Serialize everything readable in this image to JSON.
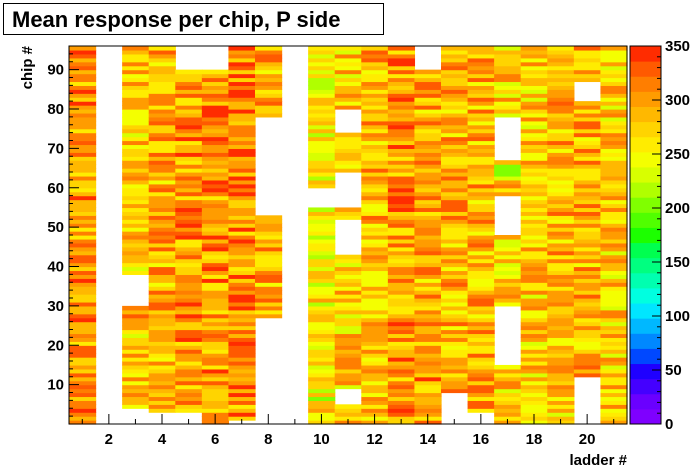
{
  "chart_data": {
    "type": "heatmap",
    "title": "Mean response per chip, P side",
    "xlabel": "ladder #",
    "ylabel": "chip #",
    "x_range": [
      1,
      21
    ],
    "y_range": [
      0,
      96
    ],
    "x_ticks": [
      2,
      4,
      6,
      8,
      10,
      12,
      14,
      16,
      18,
      20
    ],
    "y_ticks": [
      10,
      20,
      30,
      40,
      50,
      60,
      70,
      80,
      90
    ],
    "z_range": [
      0,
      350
    ],
    "colorbar_ticks": [
      0,
      50,
      100,
      150,
      200,
      250,
      300,
      350
    ],
    "palette": [
      "#7f00ff",
      "#6a00ff",
      "#4400ff",
      "#1f00ff",
      "#0048ff",
      "#0088ff",
      "#00b8ff",
      "#00e6ff",
      "#00ffe0",
      "#00ffb0",
      "#00ff80",
      "#00ff50",
      "#1cff00",
      "#50ff00",
      "#80ff00",
      "#b0ff00",
      "#d8ff00",
      "#f4ff00",
      "#ffec00",
      "#ffd400",
      "#ffb800",
      "#ff9c00",
      "#ff7e00",
      "#ff5a00",
      "#ff2c00"
    ],
    "ladders": [
      {
        "x": 1,
        "mean": 300,
        "blank": []
      },
      {
        "x": 2,
        "mean": 0,
        "blank": [
          [
            0,
            96
          ]
        ]
      },
      {
        "x": 3,
        "mean": 278,
        "blank": [
          [
            0,
            4
          ],
          [
            30,
            38
          ]
        ]
      },
      {
        "x": 4,
        "mean": 290,
        "blank": [
          [
            0,
            3
          ]
        ]
      },
      {
        "x": 5,
        "mean": 298,
        "blank": [
          [
            0,
            3
          ],
          [
            90,
            96
          ]
        ]
      },
      {
        "x": 6,
        "mean": 303,
        "blank": [
          [
            90,
            96
          ]
        ]
      },
      {
        "x": 7,
        "mean": 310,
        "blank": [
          [
            0,
            1
          ]
        ]
      },
      {
        "x": 8,
        "mean": 288,
        "blank": [
          [
            0,
            27
          ],
          [
            53,
            78
          ]
        ]
      },
      {
        "x": 9,
        "mean": 0,
        "blank": [
          [
            0,
            96
          ]
        ]
      },
      {
        "x": 10,
        "mean": 252,
        "blank": [
          [
            55,
            60
          ]
        ]
      },
      {
        "x": 11,
        "mean": 278,
        "blank": [
          [
            5,
            9
          ],
          [
            43,
            52
          ],
          [
            55,
            64
          ],
          [
            74,
            80
          ]
        ]
      },
      {
        "x": 12,
        "mean": 285,
        "blank": []
      },
      {
        "x": 13,
        "mean": 300,
        "blank": []
      },
      {
        "x": 14,
        "mean": 295,
        "blank": [
          [
            90,
            96
          ]
        ]
      },
      {
        "x": 15,
        "mean": 288,
        "blank": [
          [
            0,
            8
          ]
        ]
      },
      {
        "x": 16,
        "mean": 290,
        "blank": [
          [
            0,
            3
          ]
        ]
      },
      {
        "x": 17,
        "mean": 278,
        "blank": [
          [
            15,
            30
          ],
          [
            48,
            58
          ],
          [
            67,
            78
          ]
        ]
      },
      {
        "x": 18,
        "mean": 275,
        "blank": []
      },
      {
        "x": 19,
        "mean": 282,
        "blank": []
      },
      {
        "x": 20,
        "mean": 292,
        "blank": [
          [
            0,
            12
          ],
          [
            82,
            87
          ]
        ]
      },
      {
        "x": 21,
        "mean": 275,
        "blank": []
      }
    ]
  }
}
